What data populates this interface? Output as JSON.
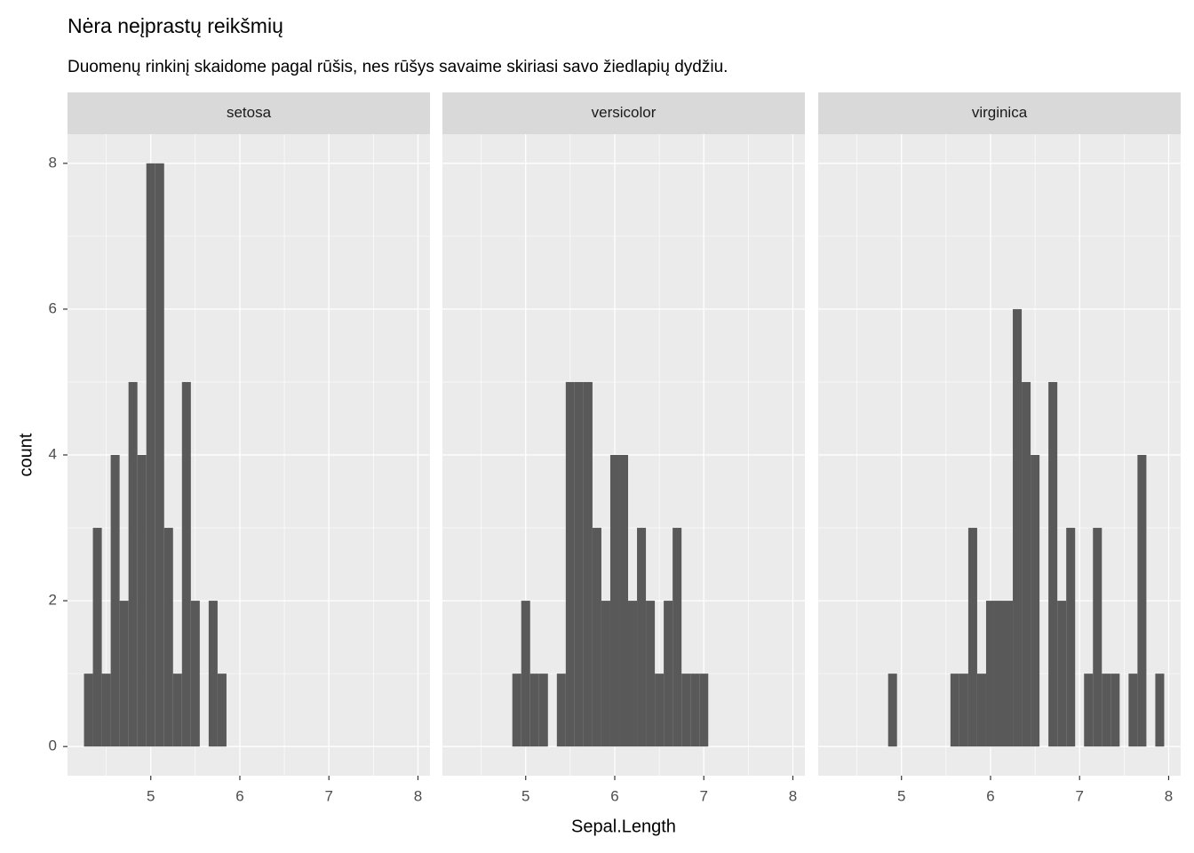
{
  "chart_data": {
    "type": "histogram",
    "title": "Nėra neįprastų reikšmių",
    "subtitle": "Duomenų rinkinį skaidome pagal rūšis, nes rūšys savaime skiriasi savo žiedlapių dydžiu.",
    "xlabel": "Sepal.Length",
    "ylabel": "count",
    "bins": [
      4.25,
      4.35,
      4.45,
      4.55,
      4.65,
      4.75,
      4.85,
      4.95,
      5.05,
      5.15,
      5.25,
      5.35,
      5.45,
      5.55,
      5.65,
      5.75,
      5.85,
      5.95,
      6.05,
      6.15,
      6.25,
      6.35,
      6.45,
      6.55,
      6.65,
      6.75,
      6.85,
      6.95,
      7.05,
      7.15,
      7.25,
      7.35,
      7.45,
      7.55,
      7.65,
      7.75,
      7.85,
      7.95
    ],
    "series": [
      {
        "name": "setosa",
        "color": "#595959",
        "values": [
          1,
          3,
          1,
          4,
          2,
          5,
          4,
          8,
          8,
          3,
          1,
          5,
          2,
          0,
          2,
          1,
          0,
          0,
          0,
          0,
          0,
          0,
          0,
          0,
          0,
          0,
          0,
          0,
          0,
          0,
          0,
          0,
          0,
          0,
          0,
          0,
          0
        ]
      },
      {
        "name": "versicolor",
        "color": "#595959",
        "values": [
          0,
          0,
          0,
          0,
          0,
          0,
          1,
          2,
          1,
          1,
          0,
          1,
          5,
          5,
          5,
          3,
          2,
          4,
          4,
          2,
          3,
          2,
          1,
          2,
          3,
          1,
          1,
          1,
          0,
          0,
          0,
          0,
          0,
          0,
          0,
          0,
          0
        ]
      },
      {
        "name": "virginica",
        "color": "#595959",
        "values": [
          0,
          0,
          0,
          0,
          0,
          0,
          1,
          0,
          0,
          0,
          0,
          0,
          0,
          1,
          1,
          3,
          1,
          2,
          2,
          2,
          6,
          5,
          4,
          0,
          5,
          2,
          3,
          0,
          1,
          3,
          1,
          1,
          0,
          1,
          4,
          0,
          1
        ]
      }
    ],
    "xlim": [
      4.065,
      8.135
    ],
    "ylim": [
      -0.4,
      8.4
    ],
    "xticks": [
      5,
      6,
      7,
      8
    ],
    "yticks": [
      0,
      2,
      4,
      6,
      8
    ],
    "xminor": [
      4.5,
      5.5,
      6.5,
      7.5
    ],
    "yminor": [
      1,
      3,
      5,
      7
    ],
    "grid": true
  }
}
